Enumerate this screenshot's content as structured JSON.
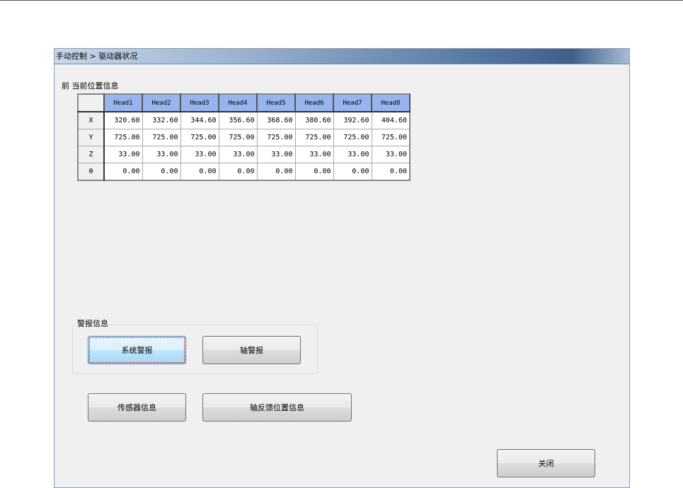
{
  "title": "手动控制 > 驱动器状况",
  "position_label": "前 当前位置信息",
  "table": {
    "headers": [
      "Head1",
      "Head2",
      "Head3",
      "Head4",
      "Head5",
      "Head6",
      "Head7",
      "Head8"
    ],
    "rows": [
      {
        "axis": "X",
        "values": [
          "320.60",
          "332.60",
          "344.60",
          "356.60",
          "368.60",
          "380.60",
          "392.60",
          "404.60"
        ]
      },
      {
        "axis": "Y",
        "values": [
          "725.00",
          "725.00",
          "725.00",
          "725.00",
          "725.00",
          "725.00",
          "725.00",
          "725.00"
        ]
      },
      {
        "axis": "Z",
        "values": [
          "33.00",
          "33.00",
          "33.00",
          "33.00",
          "33.00",
          "33.00",
          "33.00",
          "33.00"
        ]
      },
      {
        "axis": "θ",
        "values": [
          "0.00",
          "0.00",
          "0.00",
          "0.00",
          "0.00",
          "0.00",
          "0.00",
          "0.00"
        ]
      }
    ]
  },
  "alarm_group": {
    "label": "警报信息",
    "system_alarm": "系统警报",
    "axis_alarm": "轴警报"
  },
  "sensor_info": "传感器信息",
  "axis_feedback": "轴反馈位置信息",
  "close": "关闭"
}
